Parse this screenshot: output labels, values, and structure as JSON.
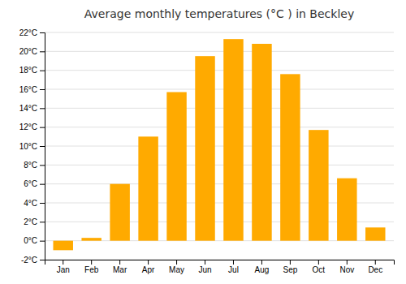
{
  "chart_data": {
    "type": "bar",
    "title": "Average monthly temperatures (°C ) in Beckley",
    "categories": [
      "Jan",
      "Feb",
      "Mar",
      "Apr",
      "May",
      "Jun",
      "Jul",
      "Aug",
      "Sep",
      "Oct",
      "Nov",
      "Dec"
    ],
    "values": [
      -1.0,
      0.3,
      6.0,
      11.0,
      15.7,
      19.5,
      21.3,
      20.8,
      17.6,
      11.7,
      6.6,
      1.4
    ],
    "color": "#FFAA00",
    "ylim": [
      -2,
      22
    ],
    "yticks": [
      {
        "value": -2,
        "label": "-2°C"
      },
      {
        "value": 0,
        "label": "0°C"
      },
      {
        "value": 2,
        "label": "2°C"
      },
      {
        "value": 4,
        "label": "4°C"
      },
      {
        "value": 6,
        "label": "6°C"
      },
      {
        "value": 8,
        "label": "8°C"
      },
      {
        "value": 10,
        "label": "10°C"
      },
      {
        "value": 12,
        "label": "12°C"
      },
      {
        "value": 14,
        "label": "14°C"
      },
      {
        "value": 16,
        "label": "16°C"
      },
      {
        "value": 18,
        "label": "18°C"
      },
      {
        "value": 20,
        "label": "20°C"
      },
      {
        "value": 22,
        "label": "22°C"
      }
    ],
    "grid": true
  }
}
